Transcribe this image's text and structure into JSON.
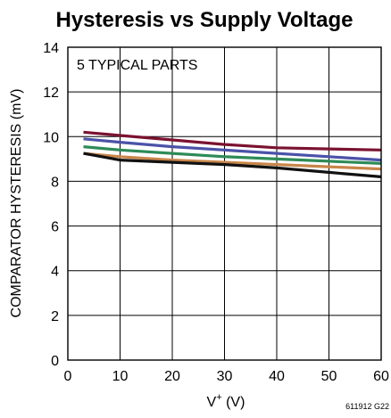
{
  "chart_data": {
    "type": "line",
    "title": "Hysteresis vs Supply Voltage",
    "xlabel": "V+ (V)",
    "xlabel_main": "V",
    "xlabel_sup": "+",
    "xlabel_unit": " (V)",
    "ylabel": "COMPARATOR HYSTERESIS (mV)",
    "annotation": "5 TYPICAL PARTS",
    "figure_code": "611912 G22",
    "xlim": [
      0,
      60
    ],
    "ylim": [
      0,
      14
    ],
    "xticks": [
      "0",
      "10",
      "20",
      "30",
      "40",
      "50",
      "60"
    ],
    "yticks": [
      "0",
      "2",
      "4",
      "6",
      "8",
      "10",
      "12",
      "14"
    ],
    "grid": true,
    "series": [
      {
        "color": "#7b1230",
        "x": [
          3,
          10,
          20,
          30,
          40,
          50,
          60
        ],
        "y": [
          10.2,
          10.05,
          9.85,
          9.65,
          9.5,
          9.45,
          9.4
        ]
      },
      {
        "color": "#4a52a8",
        "x": [
          3,
          10,
          20,
          30,
          40,
          50,
          60
        ],
        "y": [
          9.9,
          9.75,
          9.55,
          9.4,
          9.25,
          9.1,
          8.95
        ]
      },
      {
        "color": "#2e8b57",
        "x": [
          3,
          10,
          20,
          30,
          40,
          50,
          60
        ],
        "y": [
          9.55,
          9.4,
          9.25,
          9.1,
          9.0,
          8.9,
          8.8
        ]
      },
      {
        "color": "#c8864a",
        "x": [
          3,
          10,
          20,
          30,
          40,
          50,
          60
        ],
        "y": [
          9.25,
          9.1,
          8.95,
          8.85,
          8.75,
          8.65,
          8.55
        ]
      },
      {
        "color": "#111111",
        "x": [
          3,
          10,
          20,
          30,
          40,
          50,
          60
        ],
        "y": [
          9.25,
          8.95,
          8.85,
          8.75,
          8.6,
          8.4,
          8.2
        ]
      }
    ]
  }
}
